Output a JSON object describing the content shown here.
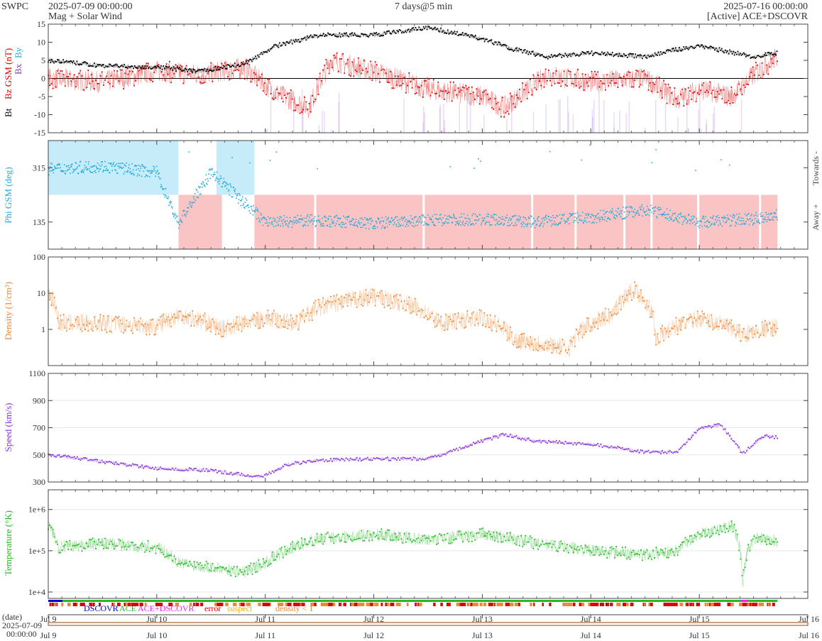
{
  "header": {
    "org": "SWPC",
    "start_time": "2025-07-09 00:00:00",
    "subtitle": "Mag + Solar Wind",
    "span": "7 days@5 min",
    "end_time": "2025-07-16 00:00:00",
    "source": "[Active] ACE+DSCOVR"
  },
  "colors": {
    "bt": "#000000",
    "bz": "#dd0000",
    "bx": "#8833cc",
    "by": "#22aadd",
    "phi": "#22aadd",
    "toward_fill": "#c6ecfa",
    "away_fill": "#fbc4c4",
    "density": "#ee8833",
    "speed": "#8833dd",
    "temperature": "#22bb22",
    "dscovr": "#0000cc",
    "ace": "#22bb22",
    "ace_dscovr": "#ee22ee",
    "error": "#dd0000",
    "suspect": "#ffaa00",
    "density_lt1": "#ee8833"
  },
  "x_axis": {
    "ticks": [
      "Jul 9",
      "Jul 10",
      "Jul 11",
      "Jul 12",
      "Jul 13",
      "Jul 14",
      "Jul 15",
      "Jul 16"
    ],
    "date_label": "(date)",
    "date_line1": "2025-07-09",
    "date_line2": "00:00:00"
  },
  "chart_data": [
    {
      "type": "line",
      "panel": "mag",
      "ylabel_parts": [
        "Bt",
        "Bz GSM (nT)",
        "Bx",
        "By"
      ],
      "ylim": [
        -15,
        15
      ],
      "yticks": [
        -15,
        -10,
        -5,
        0,
        5,
        10,
        15
      ],
      "x_unit": "days since 2025-07-09",
      "series": [
        {
          "name": "Bt",
          "x": [
            0,
            0.5,
            1,
            1.4,
            1.8,
            2.1,
            2.5,
            3,
            3.5,
            4,
            4.3,
            4.6,
            5,
            5.5,
            5.8,
            6,
            6.5,
            6.72
          ],
          "y": [
            5,
            3.5,
            3,
            2,
            4,
            9,
            12,
            12,
            14,
            11,
            8,
            6,
            7,
            6,
            8,
            9,
            6,
            7
          ]
        },
        {
          "name": "Bz",
          "x": [
            0,
            0.5,
            1,
            1.4,
            1.8,
            2.1,
            2.4,
            2.6,
            3,
            3.5,
            4,
            4.2,
            4.6,
            5,
            5.5,
            5.8,
            6,
            6.3,
            6.5,
            6.72
          ],
          "y": [
            0,
            -1,
            2,
            1,
            3,
            -4,
            -8,
            5,
            2,
            -3,
            -5,
            -8,
            1,
            -1,
            0,
            -6,
            -3,
            -5,
            1,
            6
          ]
        }
      ]
    },
    {
      "type": "scatter",
      "panel": "phi",
      "ylabel": "Phi GSM (deg)",
      "right_labels": [
        "Towards -",
        "Away +"
      ],
      "yticks": [
        135,
        315
      ],
      "ylim": [
        45,
        405
      ],
      "toward_x": [
        0,
        1.2
      ],
      "away_x": [
        1.2,
        6.72
      ],
      "series": [
        {
          "name": "Phi",
          "x": [
            0,
            0.5,
            1,
            1.2,
            1.5,
            2,
            2.5,
            3,
            3.5,
            4,
            4.5,
            5,
            5.5,
            6,
            6.5,
            6.72
          ],
          "y": [
            310,
            320,
            300,
            130,
            300,
            135,
            140,
            130,
            140,
            145,
            135,
            150,
            175,
            135,
            145,
            160
          ]
        }
      ]
    },
    {
      "type": "line",
      "panel": "density",
      "log_y": true,
      "ylabel": "Density (1/cm³)",
      "ylim": [
        0.1,
        100
      ],
      "yticks": [
        "1",
        "10",
        "100"
      ],
      "series": [
        {
          "name": "Density",
          "x": [
            0,
            0.1,
            0.5,
            1,
            1.2,
            1.6,
            2,
            2.3,
            2.5,
            3,
            3.3,
            3.6,
            4,
            4.3,
            4.8,
            5.2,
            5.4,
            5.6,
            6,
            6.4,
            6.72
          ],
          "y": [
            10,
            1.5,
            1.5,
            1.2,
            2.5,
            1,
            2,
            1.5,
            4,
            8,
            5,
            1.5,
            2,
            0.5,
            0.3,
            2.5,
            12,
            0.5,
            2,
            0.7,
            1.2
          ]
        }
      ]
    },
    {
      "type": "line",
      "panel": "speed",
      "ylabel": "Speed (km/s)",
      "ylim": [
        300,
        1100
      ],
      "yticks": [
        300,
        500,
        700,
        900,
        1100
      ],
      "series": [
        {
          "name": "Speed",
          "x": [
            0,
            0.5,
            1,
            1.5,
            1.9,
            2,
            2.2,
            2.5,
            3,
            3.5,
            3.8,
            4.2,
            4.5,
            5,
            5.5,
            5.8,
            6,
            6.2,
            6.4,
            6.6,
            6.72
          ],
          "y": [
            500,
            450,
            400,
            385,
            340,
            345,
            430,
            460,
            470,
            470,
            550,
            650,
            600,
            580,
            520,
            520,
            700,
            720,
            510,
            640,
            630
          ]
        }
      ]
    },
    {
      "type": "line",
      "panel": "temperature",
      "log_y": true,
      "ylabel": "Temperature (°K)",
      "ylim": [
        7000,
        3000000
      ],
      "yticks": [
        "1e+4",
        "1e+5",
        "1e+6"
      ],
      "series": [
        {
          "name": "Temperature",
          "x": [
            0,
            0.1,
            0.5,
            1,
            1.2,
            1.5,
            1.8,
            2,
            2.2,
            2.5,
            3,
            3.5,
            4,
            4.5,
            5,
            5.5,
            5.8,
            6,
            6.3,
            6.4,
            6.5,
            6.72
          ],
          "y": [
            400000,
            120000,
            150000,
            120000,
            50000,
            40000,
            30000,
            50000,
            100000,
            200000,
            250000,
            180000,
            250000,
            150000,
            100000,
            80000,
            100000,
            250000,
            400000,
            10000,
            200000,
            170000
          ]
        }
      ]
    }
  ],
  "legend": {
    "dscovr": "DSCOVR",
    "ace": "ACE",
    "ace_dscovr": "ACE+DSCOVR",
    "error": "error",
    "suspect": "suspect",
    "density_lt1": "density < 1"
  }
}
